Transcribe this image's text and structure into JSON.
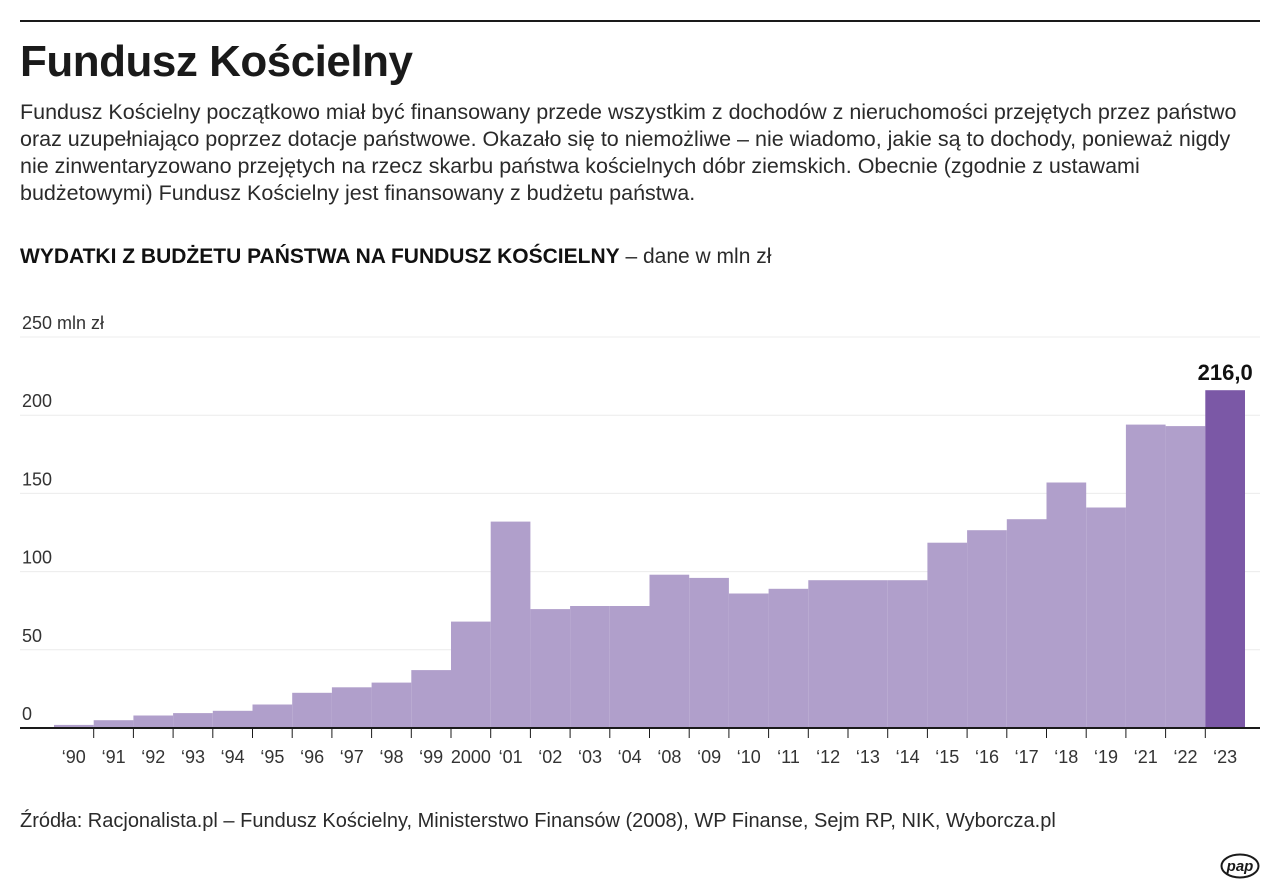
{
  "title": "Fundusz Kościelny",
  "description": "Fundusz Kościelny początkowo miał być finansowany przede wszystkim z dochodów z nieruchomości przejętych przez państwo oraz uzupełniająco poprzez dotacje państwowe. Okazało się to niemożliwe – nie wiadomo, jakie są to dochody, ponieważ nigdy nie zinwentaryzowano przejętych na rzecz skarbu państwa kościelnych dóbr ziemskich. Obecnie (zgodnie z ustawami budżetowymi) Fundusz Kościelny jest finansowany z budżetu państwa.",
  "subtitle_bold": "WYDATKI Z BUDŻETU PAŃSTWA NA FUNDUSZ KOŚCIELNY",
  "subtitle_rest": " – dane w mln zł",
  "source": "Źródła: Racjonalista.pl – Fundusz Kościelny, Ministerstwo Finansów (2008), WP Finanse, Sejm RP, NIK, Wyborcza.pl",
  "logo_text": "pap",
  "colors": {
    "bar": "#b09fcb",
    "bar_highlight": "#7b58a6",
    "text": "#1a1a1a",
    "grid": "#ececec"
  },
  "chart_data": {
    "type": "bar",
    "title": "WYDATKI Z BUDŻETU PAŃSTWA NA FUNDUSZ KOŚCIELNY",
    "ylabel": "250 mln zł",
    "ylim": [
      0,
      250
    ],
    "yticks": [
      "0",
      "50",
      "100",
      "150",
      "200",
      "250 mln zł"
    ],
    "grid": true,
    "categories": [
      "‘90",
      "‘91",
      "‘92",
      "‘93",
      "‘94",
      "‘95",
      "‘96",
      "‘97",
      "‘98",
      "‘99",
      "2000",
      "‘01",
      "‘02",
      "‘03",
      "‘04",
      "‘08",
      "‘09",
      "‘10",
      "‘11",
      "‘12",
      "‘13",
      "‘14",
      "‘15",
      "‘16",
      "‘17",
      "‘18",
      "‘19",
      "‘21",
      "‘22",
      "‘23"
    ],
    "values": [
      2,
      5,
      8,
      9.5,
      11,
      15,
      22.5,
      26,
      29,
      37,
      68,
      132,
      76,
      78,
      78,
      98,
      96,
      86,
      89,
      94.5,
      94.5,
      94.5,
      118.5,
      126.5,
      133.5,
      157,
      141,
      194,
      193,
      216
    ],
    "highlight_label": "216,0",
    "highlight_index": 29
  }
}
